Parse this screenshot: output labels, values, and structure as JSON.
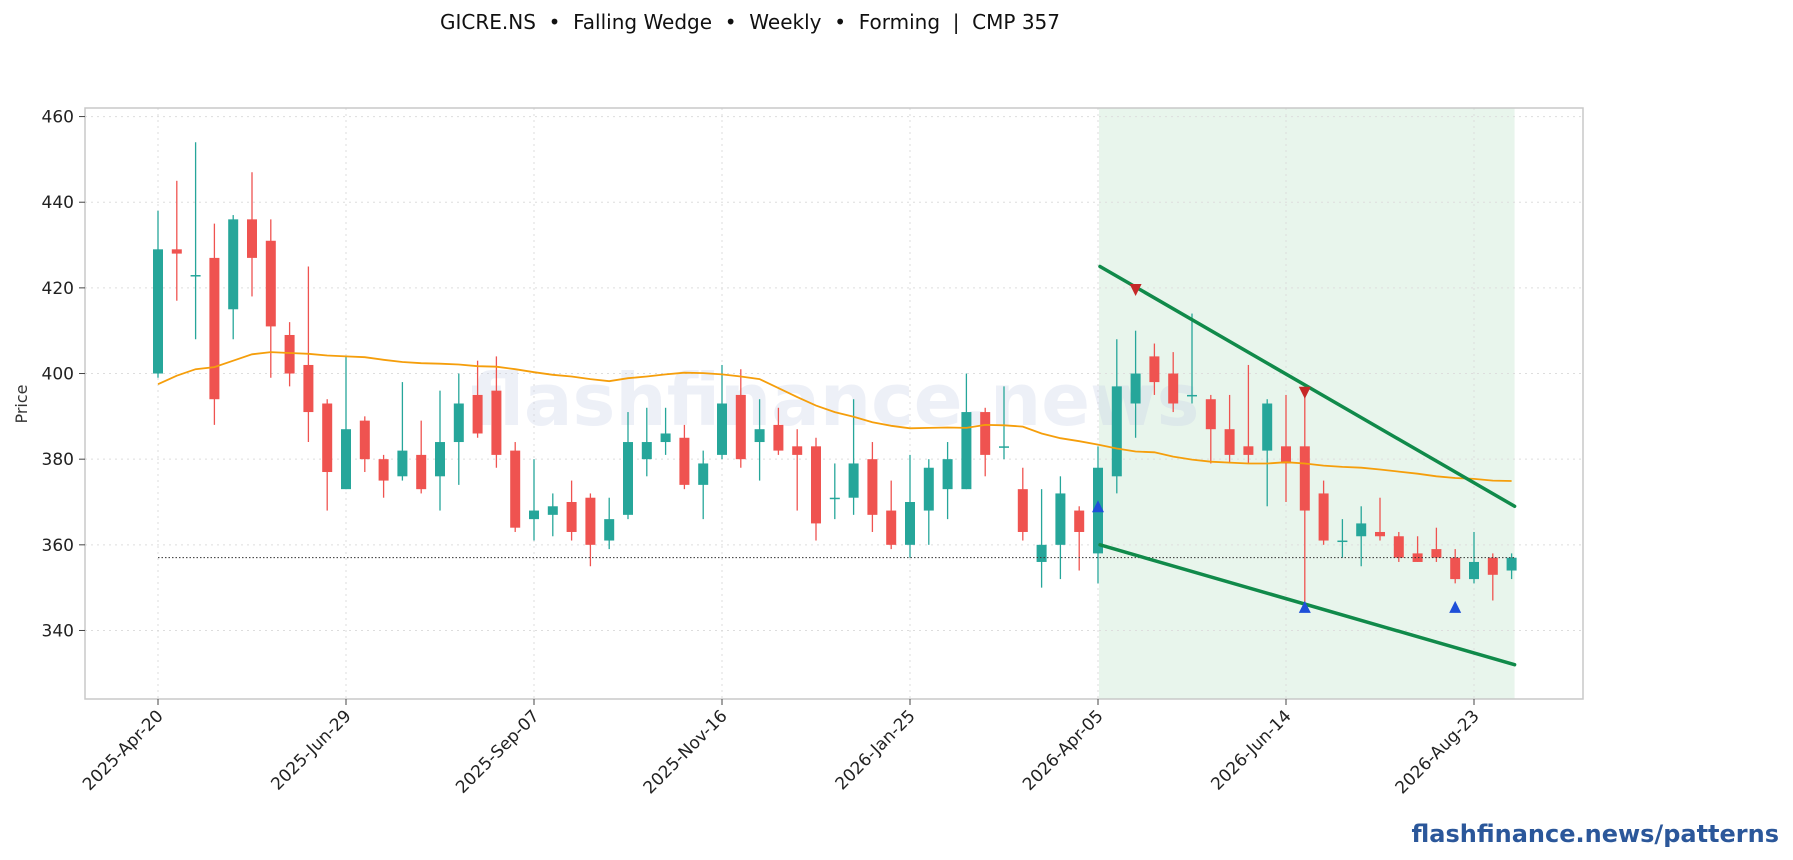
{
  "header": {
    "title": "GICRE.NS  •  Falling Wedge  •  Weekly  •  Forming  |  CMP 357"
  },
  "footer": {
    "text": "flashfinance.news/patterns"
  },
  "watermark": "flashfinance.news",
  "colors": {
    "up": "#26a69a",
    "down": "#ef5350",
    "ma": "#f59e0b",
    "wedge": "#108a4a",
    "zone": "#e8f5ec",
    "marker_high": "#c62828",
    "marker_low": "#1e4fd8",
    "cmp_line": "#333333"
  },
  "chart_data": {
    "type": "candlestick",
    "title": "GICRE.NS  •  Falling Wedge  •  Weekly  •  Forming  |  CMP 357",
    "xlabel": "",
    "ylabel": "Price",
    "ylim": [
      324,
      462
    ],
    "yticks": [
      340,
      360,
      380,
      400,
      420,
      440,
      460
    ],
    "xticks": [
      {
        "label": "2025-Apr-20",
        "index": 0
      },
      {
        "label": "2025-Jun-29",
        "index": 10
      },
      {
        "label": "2025-Sep-07",
        "index": 20
      },
      {
        "label": "2025-Nov-16",
        "index": 30
      },
      {
        "label": "2026-Jan-25",
        "index": 40
      },
      {
        "label": "2026-Apr-05",
        "index": 50
      },
      {
        "label": "2026-Jun-14",
        "index": 60
      },
      {
        "label": "2026-Aug-23",
        "index": 70
      }
    ],
    "grid": true,
    "candles": [
      [
        400,
        438,
        399,
        429
      ],
      [
        429,
        445,
        417,
        428
      ],
      [
        423,
        454,
        408,
        423
      ],
      [
        427,
        435,
        388,
        394
      ],
      [
        415,
        437,
        408,
        436
      ],
      [
        436,
        447,
        418,
        427
      ],
      [
        431,
        436,
        399,
        411
      ],
      [
        409,
        412,
        397,
        400
      ],
      [
        402,
        425,
        384,
        391
      ],
      [
        393,
        394,
        368,
        377
      ],
      [
        373,
        404,
        373,
        387
      ],
      [
        389,
        390,
        377,
        380
      ],
      [
        380,
        381,
        371,
        375
      ],
      [
        376,
        398,
        375,
        382
      ],
      [
        381,
        389,
        372,
        373
      ],
      [
        376,
        396,
        368,
        384
      ],
      [
        384,
        400,
        374,
        393
      ],
      [
        395,
        403,
        385,
        386
      ],
      [
        396,
        404,
        378,
        381
      ],
      [
        382,
        384,
        363,
        364
      ],
      [
        366,
        380,
        361,
        368
      ],
      [
        367,
        372,
        362,
        369
      ],
      [
        370,
        375,
        361,
        363
      ],
      [
        371,
        372,
        355,
        360
      ],
      [
        361,
        371,
        359,
        366
      ],
      [
        367,
        391,
        366,
        384
      ],
      [
        380,
        392,
        376,
        384
      ],
      [
        384,
        392,
        381,
        386
      ],
      [
        385,
        388,
        373,
        374
      ],
      [
        374,
        382,
        366,
        379
      ],
      [
        381,
        402,
        380,
        393
      ],
      [
        395,
        401,
        378,
        380
      ],
      [
        384,
        394,
        375,
        387
      ],
      [
        388,
        392,
        381,
        382
      ],
      [
        383,
        387,
        368,
        381
      ],
      [
        383,
        385,
        361,
        365
      ],
      [
        371,
        379,
        366,
        371
      ],
      [
        371,
        394,
        367,
        379
      ],
      [
        380,
        384,
        363,
        367
      ],
      [
        368,
        375,
        359,
        360
      ],
      [
        360,
        381,
        357,
        370
      ],
      [
        368,
        380,
        360,
        378
      ],
      [
        373,
        384,
        366,
        380
      ],
      [
        373,
        400,
        373,
        391
      ],
      [
        391,
        392,
        376,
        381
      ],
      [
        383,
        397,
        380,
        383
      ],
      [
        373,
        378,
        361,
        363
      ],
      [
        356,
        373,
        350,
        360
      ],
      [
        360,
        376,
        352,
        372
      ],
      [
        368,
        369,
        354,
        363
      ],
      [
        358,
        383,
        351,
        378
      ],
      [
        376,
        408,
        372,
        397
      ],
      [
        393,
        410,
        385,
        400
      ],
      [
        404,
        407,
        395,
        398
      ],
      [
        400,
        405,
        391,
        393
      ],
      [
        395,
        414,
        393,
        395
      ],
      [
        394,
        395,
        379,
        387
      ],
      [
        387,
        395,
        379,
        381
      ],
      [
        383,
        402,
        379,
        381
      ],
      [
        382,
        394,
        369,
        393
      ],
      [
        383,
        395,
        370,
        379
      ],
      [
        383,
        396,
        346,
        368
      ],
      [
        372,
        375,
        360,
        361
      ],
      [
        361,
        366,
        357,
        361
      ],
      [
        362,
        369,
        355,
        365
      ],
      [
        363,
        371,
        361,
        362
      ],
      [
        362,
        363,
        356,
        357
      ],
      [
        358,
        362,
        356,
        356
      ],
      [
        359,
        364,
        356,
        357
      ],
      [
        357,
        359,
        351,
        352
      ],
      [
        352,
        363,
        351,
        356
      ],
      [
        357,
        358,
        347,
        353
      ],
      [
        354,
        358,
        352,
        357
      ]
    ],
    "moving_average": [
      397.5,
      399.5,
      401.0,
      401.5,
      403.0,
      404.5,
      405.0,
      404.8,
      404.6,
      404.2,
      404.0,
      403.8,
      403.2,
      402.7,
      402.4,
      402.3,
      402.1,
      401.7,
      401.6,
      401.0,
      400.3,
      399.7,
      399.3,
      398.7,
      398.2,
      398.9,
      399.3,
      399.8,
      400.2,
      400.1,
      399.8,
      399.3,
      398.7,
      396.6,
      394.5,
      392.5,
      391.0,
      389.9,
      388.6,
      387.8,
      387.2,
      387.3,
      387.4,
      387.3,
      388.0,
      387.9,
      387.6,
      386.0,
      384.9,
      384.2,
      383.4,
      382.5,
      381.8,
      381.6,
      380.6,
      379.9,
      379.4,
      379.2,
      379.0,
      379.0,
      379.3,
      379.0,
      378.5,
      378.2,
      378.0,
      377.6,
      377.1,
      376.6,
      376.0,
      375.6,
      375.4,
      375.0,
      374.9
    ],
    "cmp": 357,
    "pattern": {
      "name": "Falling Wedge",
      "status": "Forming",
      "zone_start_index": 50,
      "zone_end_index": 72,
      "upper_line": [
        [
          50,
          425
        ],
        [
          72,
          369
        ]
      ],
      "lower_line": [
        [
          50,
          360
        ],
        [
          72,
          332
        ]
      ]
    },
    "markers": [
      {
        "index": 52,
        "value": 419.5,
        "kind": "swing-high"
      },
      {
        "index": 61,
        "value": 395.5,
        "kind": "swing-high"
      },
      {
        "index": 50,
        "value": 369,
        "kind": "swing-low"
      },
      {
        "index": 61,
        "value": 345.5,
        "kind": "swing-low"
      },
      {
        "index": 69,
        "value": 345.5,
        "kind": "swing-low"
      }
    ]
  }
}
